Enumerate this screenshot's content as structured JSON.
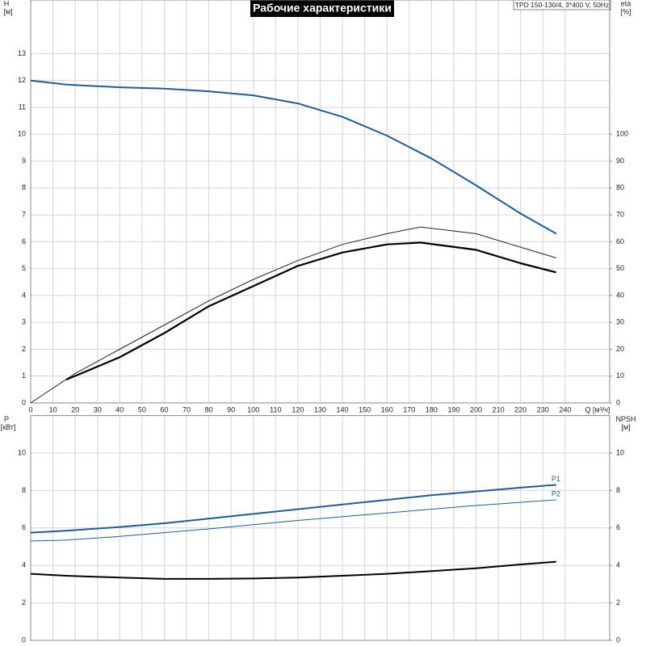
{
  "chart_data": [
    {
      "type": "line",
      "title": "Рабочие характеристики",
      "annotation": "TPD 150-130/4, 3*400 V, 50Hz",
      "ylabel": "H",
      "yunit": "[м]",
      "y2label": "eta",
      "y2unit": "[%]",
      "xlabel": "Q [м³/ч]",
      "xlim": [
        0,
        260
      ],
      "xticks": [
        0,
        10,
        20,
        30,
        40,
        50,
        60,
        70,
        80,
        90,
        100,
        110,
        120,
        130,
        140,
        150,
        160,
        170,
        180,
        190,
        200,
        210,
        220,
        230,
        240
      ],
      "ylim": [
        0,
        15
      ],
      "yticks": [
        0,
        1,
        2,
        3,
        4,
        5,
        6,
        7,
        8,
        9,
        10,
        11,
        12,
        13
      ],
      "y2lim": [
        0,
        150
      ],
      "y2ticks": [
        0,
        10,
        20,
        30,
        40,
        50,
        60,
        70,
        80,
        90,
        100
      ],
      "grid": true,
      "series": [
        {
          "color": "#1f5b9a",
          "width": 2,
          "x": [
            0,
            16,
            40,
            60,
            80,
            100,
            120,
            140,
            160,
            180,
            200,
            220,
            236
          ],
          "values": [
            12,
            11.85,
            11.75,
            11.7,
            11.6,
            11.45,
            11.15,
            10.65,
            9.95,
            9.1,
            8.1,
            7.05,
            6.3
          ]
        },
        {
          "color": "#222222",
          "width": 1,
          "axis": "y2",
          "x": [
            0,
            20,
            40,
            60,
            80,
            100,
            120,
            140,
            160,
            175,
            200,
            220,
            236
          ],
          "values": [
            0,
            11,
            20,
            29,
            38,
            46,
            53,
            59,
            63,
            65.5,
            63,
            58,
            54
          ]
        },
        {
          "color": "#000000",
          "width": 2.2,
          "axis": "y2",
          "x": [
            16,
            40,
            60,
            80,
            100,
            120,
            140,
            160,
            175,
            200,
            220,
            236
          ],
          "values": [
            8.7,
            17,
            26,
            36,
            43.5,
            51,
            56,
            59,
            59.7,
            57,
            52,
            48.6
          ]
        }
      ]
    },
    {
      "type": "line",
      "ylabel": "P",
      "yunit": "[кВт]",
      "y2label": "NPSH",
      "y2unit": "[м]",
      "xlim": [
        0,
        260
      ],
      "ylim": [
        0,
        12
      ],
      "yticks": [
        0,
        2,
        4,
        6,
        8,
        10
      ],
      "y2lim": [
        0,
        12
      ],
      "y2ticks": [
        0,
        2,
        4,
        6,
        8,
        10
      ],
      "grid": true,
      "series": [
        {
          "name": "P1",
          "color": "#1f5b9a",
          "width": 2,
          "x": [
            0,
            16,
            40,
            60,
            80,
            100,
            120,
            140,
            160,
            180,
            200,
            220,
            236
          ],
          "values": [
            5.75,
            5.85,
            6.05,
            6.25,
            6.5,
            6.75,
            7.0,
            7.25,
            7.5,
            7.75,
            7.95,
            8.15,
            8.3
          ]
        },
        {
          "name": "P2",
          "color": "#1f5b9a",
          "width": 1,
          "x": [
            0,
            16,
            40,
            80,
            120,
            160,
            200,
            236
          ],
          "values": [
            5.3,
            5.35,
            5.55,
            5.95,
            6.4,
            6.8,
            7.2,
            7.5
          ]
        },
        {
          "color": "#000000",
          "width": 2,
          "axis": "y2",
          "x": [
            0,
            16,
            40,
            60,
            80,
            100,
            120,
            140,
            160,
            180,
            200,
            220,
            236
          ],
          "values": [
            3.55,
            3.45,
            3.35,
            3.28,
            3.28,
            3.3,
            3.35,
            3.45,
            3.55,
            3.7,
            3.85,
            4.05,
            4.2
          ]
        }
      ]
    }
  ]
}
